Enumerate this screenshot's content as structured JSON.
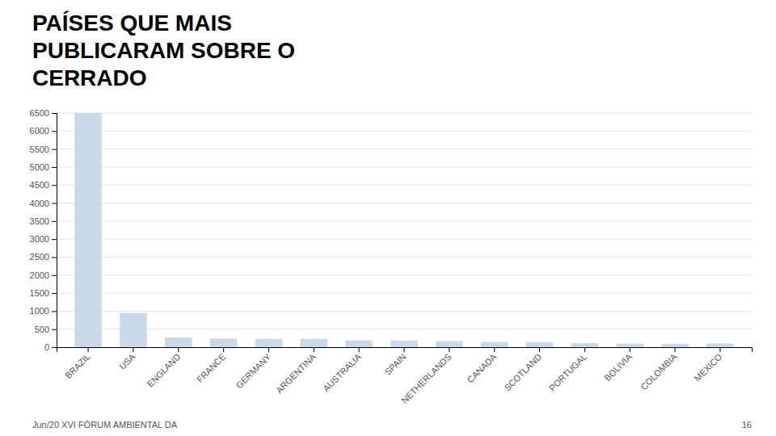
{
  "chart_data": {
    "type": "bar",
    "title": [
      "PAÍSES QUE MAIS",
      "PUBLICARAM SOBRE O",
      "CERRADO"
    ],
    "categories": [
      "BRAZIL",
      "USA",
      "ENGLAND",
      "FRANCE",
      "GERMANY",
      "ARGENTINA",
      "AUSTRALIA",
      "SPAIN",
      "NETHERLANDS",
      "CANADA",
      "SCOTLAND",
      "PORTUGAL",
      "BOLIVIA",
      "COLOMBIA",
      "MEXICO"
    ],
    "values": [
      6500,
      950,
      270,
      240,
      230,
      230,
      190,
      185,
      170,
      145,
      140,
      110,
      100,
      95,
      105
    ],
    "color": "#c9d9e8",
    "ylim": [
      0,
      6500
    ],
    "yticks": [
      0,
      500,
      1000,
      1500,
      2000,
      2500,
      3000,
      3500,
      4000,
      4500,
      5000,
      5500,
      6000,
      6500
    ],
    "grid": true,
    "annotations": [
      "Jun/20 XVI FÓRUM AMBIENTAL DA",
      "16"
    ]
  }
}
